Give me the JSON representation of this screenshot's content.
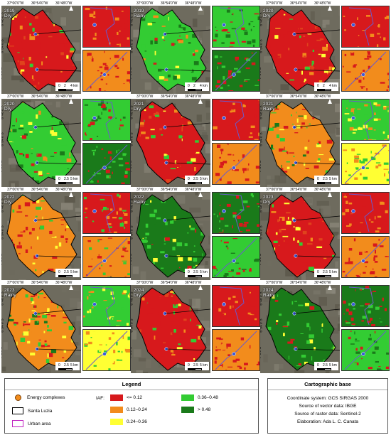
{
  "coords": {
    "top": [
      "37°00'0\"W",
      "36°54'0\"W",
      "36°48'0\"W"
    ],
    "left": [
      "6°48'0\"S",
      "6°54'0\"S",
      "7°0'0\"S"
    ]
  },
  "panels": [
    {
      "year": "2019",
      "season": "Dry",
      "theme": "red",
      "scale": [
        "0",
        "2",
        "4 km"
      ]
    },
    {
      "year": "2019",
      "season": "Rainy",
      "theme": "green",
      "scale": [
        "0",
        "2",
        "4 km"
      ]
    },
    {
      "year": "2020",
      "season": "Dry",
      "theme": "red",
      "scale": [
        "0",
        "2",
        "4 km"
      ]
    },
    {
      "year": "2020",
      "season": "Dry",
      "theme": "green",
      "scale": [
        "0",
        "2.5",
        "5 km"
      ]
    },
    {
      "year": "2021",
      "season": "Dry",
      "theme": "red",
      "scale": [
        "0",
        "2.5",
        "5 km"
      ]
    },
    {
      "year": "2021",
      "season": "Rainy",
      "theme": "mixed",
      "scale": [
        "0",
        "2.5",
        "5 km"
      ]
    },
    {
      "year": "2022",
      "season": "Dry",
      "theme": "orange",
      "scale": [
        "0",
        "2.5",
        "5 km"
      ]
    },
    {
      "year": "2022",
      "season": "Rainy",
      "theme": "dgreen",
      "scale": [
        "0",
        "2.5",
        "5 km"
      ]
    },
    {
      "year": "2023",
      "season": "Dry",
      "theme": "red",
      "scale": [
        "0",
        "2.5",
        "5 km"
      ]
    },
    {
      "year": "2023",
      "season": "Rainy",
      "theme": "mixed",
      "scale": [
        "0",
        "2.5",
        "5 km"
      ]
    },
    {
      "year": "2024",
      "season": "Dry",
      "theme": "red",
      "scale": [
        "0",
        "2.5",
        "5 km"
      ]
    },
    {
      "year": "2024",
      "season": "Rainy",
      "theme": "dgreen",
      "scale": [
        "0",
        "2.5",
        "5 km"
      ]
    }
  ],
  "legend": {
    "title": "Legend",
    "energy": "Energy complexes",
    "santa_luzia": "Santa Luzia",
    "urban": "Urban area",
    "iaf_label": "IAF:",
    "classes": [
      {
        "label": "<= 0.12",
        "color": "#d7191c"
      },
      {
        "label": "0.12–0.24",
        "color": "#f28c1c"
      },
      {
        "label": "0.24–0.36",
        "color": "#ffff33"
      },
      {
        "label": "0.36–0.48",
        "color": "#33cc33"
      },
      {
        "label": "> 0.48",
        "color": "#1a7a1a"
      }
    ]
  },
  "carto": {
    "title": "Cartographic base",
    "lines": [
      "Coordinate system: GCS SIRGAS 2000",
      "Source of vector data: IBGE",
      "Source of raster data: Sentinel-2",
      "Elaboration: Ada L. C. Canata"
    ]
  }
}
